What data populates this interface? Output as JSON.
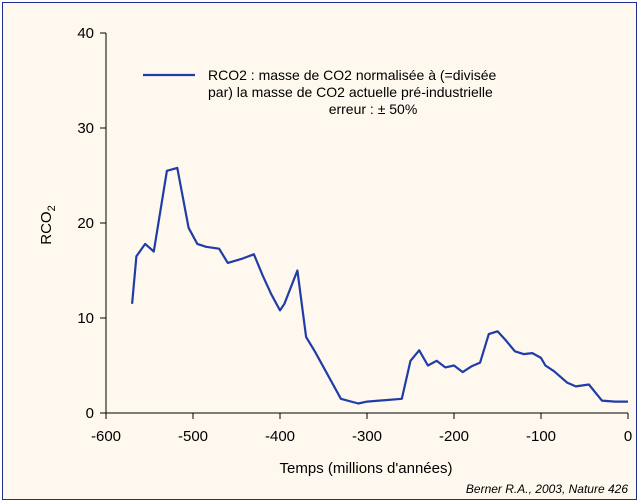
{
  "chart_data": {
    "type": "line",
    "xlabel": "Temps (millions d'années)",
    "ylabel": "RCO",
    "ylabel_subscript": "2",
    "xlim": [
      -600,
      0
    ],
    "ylim": [
      0,
      40
    ],
    "xticks": [
      -600,
      -500,
      -400,
      -300,
      -200,
      -100,
      0
    ],
    "yticks": [
      0,
      10,
      20,
      30,
      40
    ],
    "grid": false,
    "legend_position": "top-right",
    "series": [
      {
        "name": "RCO2 : masse de CO2 normalisée à (=divisée par) la masse de CO2 actuelle pré-industrielle erreur : ± 50%",
        "legend_lines": [
          "RCO2 : masse de CO2 normalisée à (=divisée",
          "par)  la masse de CO2 actuelle pré-industrielle",
          "erreur : ± 50%"
        ],
        "color": "#1f3ca8",
        "x": [
          -570,
          -565,
          -555,
          -545,
          -530,
          -518,
          -505,
          -495,
          -485,
          -470,
          -460,
          -445,
          -430,
          -420,
          -410,
          -400,
          -395,
          -380,
          -370,
          -360,
          -330,
          -310,
          -300,
          -260,
          -250,
          -240,
          -230,
          -220,
          -210,
          -200,
          -190,
          -180,
          -170,
          -160,
          -150,
          -140,
          -130,
          -120,
          -110,
          -100,
          -95,
          -85,
          -70,
          -60,
          -45,
          -30,
          -15,
          0
        ],
        "y": [
          11.5,
          16.5,
          17.8,
          17,
          25.5,
          25.8,
          19.5,
          17.8,
          17.5,
          17.3,
          15.8,
          16.2,
          16.7,
          14.5,
          12.5,
          10.8,
          11.5,
          15,
          8,
          6.5,
          1.5,
          1,
          1.2,
          1.5,
          5.5,
          6.6,
          5,
          5.5,
          4.8,
          5,
          4.3,
          4.9,
          5.3,
          8.3,
          8.6,
          7.6,
          6.5,
          6.2,
          6.3,
          5.8,
          5,
          4.4,
          3.2,
          2.8,
          3,
          1.3,
          1.2,
          1.2
        ]
      }
    ],
    "credit": "Berner R.A., 2003, Nature 426"
  }
}
